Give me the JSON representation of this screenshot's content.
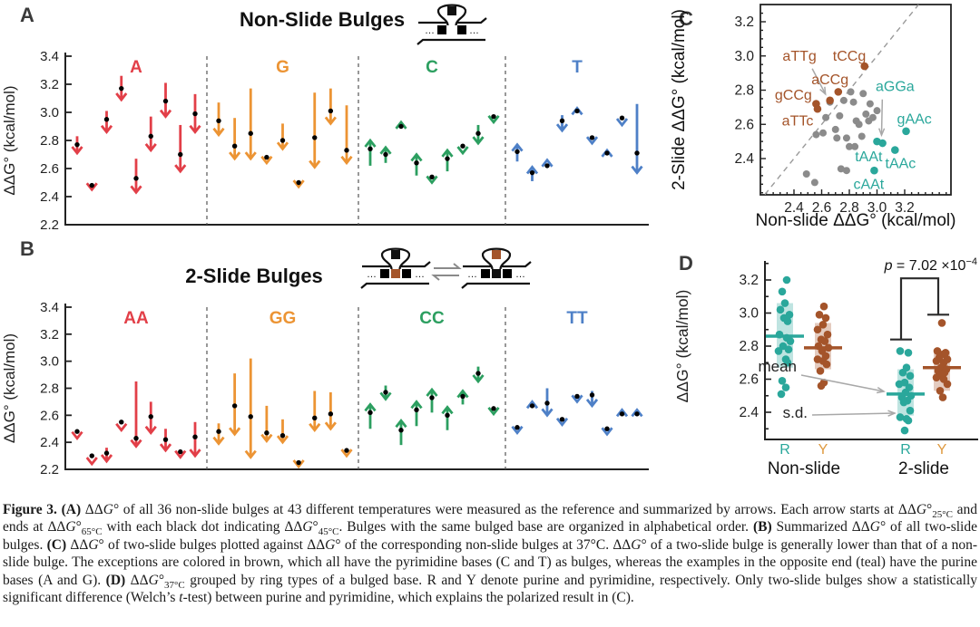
{
  "figure": {
    "panels": {
      "A": {
        "letter": "A",
        "title": "Non-Slide Bulges"
      },
      "B": {
        "letter": "B",
        "title": "2-Slide Bulges"
      },
      "C": {
        "letter": "C"
      },
      "D": {
        "letter": "D"
      }
    },
    "schematics": {
      "non_slide": {
        "loop": "black",
        "row": [
          "gray",
          "gray"
        ]
      },
      "two_slide_left": {
        "loop": "black",
        "row": [
          "gray",
          "brown",
          "gray"
        ]
      },
      "two_slide_right": {
        "loop": "brown",
        "row": [
          "gray",
          "black",
          "gray"
        ]
      }
    }
  },
  "colors": {
    "red": "#E23F48",
    "orange": "#EC9434",
    "green": "#2C9F60",
    "blue": "#4E80C7",
    "teal": "#2AA79B",
    "brown": "#A4542A",
    "orange_label": "#DF9A40",
    "gray_point": "#8B8B8B",
    "gray_square": "#A2A2A2",
    "black": "#111111",
    "axis": "#222222",
    "dash": "#555555",
    "leader": "#A8A8A8"
  },
  "chart_data": [
    {
      "id": "A",
      "type": "arrow-summary",
      "title": "Non-Slide Bulges",
      "ylabel": "ΔΔG° (kcal/mol)",
      "ylim": [
        2.2,
        3.4
      ],
      "yticks": [
        2.2,
        2.4,
        2.6,
        2.8,
        3.0,
        3.2,
        3.4
      ],
      "note": "arrows run from ΔΔG°25°C (start) through ΔΔG°45°C (dot) to ΔΔG°65°C (end)",
      "groups": [
        {
          "label": "A",
          "color": "red",
          "arrows": [
            [
              2.83,
              2.77,
              2.71
            ],
            [
              2.52,
              2.48,
              2.45
            ],
            [
              3.01,
              2.95,
              2.86
            ],
            [
              3.26,
              3.17,
              3.09
            ],
            [
              2.67,
              2.53,
              2.43
            ],
            [
              2.97,
              2.83,
              2.73
            ],
            [
              3.21,
              3.08,
              2.97
            ],
            [
              2.91,
              2.7,
              2.58
            ],
            [
              3.13,
              2.99,
              2.86
            ]
          ]
        },
        {
          "label": "G",
          "color": "orange",
          "arrows": [
            [
              3.07,
              2.94,
              2.84
            ],
            [
              2.96,
              2.76,
              2.67
            ],
            [
              3.17,
              2.85,
              2.67
            ],
            [
              2.72,
              2.68,
              2.64
            ],
            [
              2.92,
              2.8,
              2.74
            ],
            [
              2.55,
              2.5,
              2.47
            ],
            [
              3.14,
              2.82,
              2.61
            ],
            [
              3.17,
              3.01,
              2.92
            ],
            [
              3.05,
              2.73,
              2.64
            ]
          ]
        },
        {
          "label": "C",
          "color": "green",
          "arrows": [
            [
              2.62,
              2.74,
              2.8
            ],
            [
              2.64,
              2.7,
              2.75
            ],
            [
              2.86,
              2.9,
              2.93
            ],
            [
              2.55,
              2.64,
              2.7
            ],
            [
              2.58,
              2.54,
              2.5
            ],
            [
              2.58,
              2.67,
              2.73
            ],
            [
              2.8,
              2.76,
              2.71
            ],
            [
              2.91,
              2.85,
              2.78
            ],
            [
              3.01,
              2.97,
              2.93
            ]
          ]
        },
        {
          "label": "T",
          "color": "blue",
          "arrows": [
            [
              2.65,
              2.72,
              2.77
            ],
            [
              2.51,
              2.57,
              2.61
            ],
            [
              2.57,
              2.62,
              2.66
            ],
            [
              2.98,
              2.94,
              2.87
            ],
            [
              2.96,
              3.01,
              3.03
            ],
            [
              2.87,
              2.82,
              2.78
            ],
            [
              2.66,
              2.71,
              2.73
            ],
            [
              3.0,
              2.96,
              2.91
            ],
            [
              3.06,
              2.71,
              2.57
            ]
          ]
        }
      ]
    },
    {
      "id": "B",
      "type": "arrow-summary",
      "title": "2-Slide Bulges",
      "ylabel": "ΔΔG° (kcal/mol)",
      "ylim": [
        2.2,
        3.4
      ],
      "yticks": [
        2.2,
        2.4,
        2.6,
        2.8,
        3.0,
        3.2,
        3.4
      ],
      "groups": [
        {
          "label": "AA",
          "color": "red",
          "arrows": [
            [
              2.52,
              2.48,
              2.43
            ],
            [
              2.33,
              2.3,
              2.24
            ],
            [
              2.36,
              2.32,
              2.26
            ],
            [
              2.57,
              2.55,
              2.49
            ],
            [
              2.85,
              2.43,
              2.37
            ],
            [
              2.7,
              2.59,
              2.47
            ],
            [
              2.5,
              2.42,
              2.34
            ],
            [
              2.36,
              2.33,
              2.29
            ],
            [
              2.55,
              2.44,
              2.3
            ]
          ]
        },
        {
          "label": "GG",
          "color": "orange",
          "arrows": [
            [
              2.54,
              2.48,
              2.39
            ],
            [
              2.91,
              2.67,
              2.46
            ],
            [
              3.02,
              2.59,
              2.29
            ],
            [
              2.67,
              2.47,
              2.41
            ],
            [
              2.57,
              2.45,
              2.4
            ],
            [
              2.28,
              2.25,
              2.22
            ],
            [
              2.78,
              2.58,
              2.49
            ],
            [
              2.77,
              2.61,
              2.5
            ],
            [
              2.37,
              2.34,
              2.3
            ]
          ]
        },
        {
          "label": "CC",
          "color": "green",
          "arrows": [
            [
              2.5,
              2.62,
              2.68
            ],
            [
              2.82,
              2.77,
              2.72
            ],
            [
              2.38,
              2.49,
              2.56
            ],
            [
              2.52,
              2.64,
              2.7
            ],
            [
              2.62,
              2.73,
              2.79
            ],
            [
              2.49,
              2.6,
              2.66
            ],
            [
              2.68,
              2.74,
              2.78
            ],
            [
              2.96,
              2.91,
              2.85
            ],
            [
              2.69,
              2.65,
              2.61
            ]
          ]
        },
        {
          "label": "TT",
          "color": "blue",
          "arrows": [
            [
              2.55,
              2.51,
              2.47
            ],
            [
              2.62,
              2.67,
              2.7
            ],
            [
              2.8,
              2.69,
              2.6
            ],
            [
              2.61,
              2.57,
              2.53
            ],
            [
              2.78,
              2.74,
              2.7
            ],
            [
              2.78,
              2.75,
              2.67
            ],
            [
              2.54,
              2.5,
              2.46
            ],
            [
              2.57,
              2.61,
              2.64
            ],
            [
              2.57,
              2.61,
              2.64
            ]
          ]
        }
      ]
    },
    {
      "id": "C",
      "type": "scatter",
      "xlabel": "Non-slide ΔΔG° (kcal/mol)",
      "ylabel": "2-Slide ΔΔG° (kcal/mol)",
      "xlim": [
        2.16,
        3.53
      ],
      "ylim": [
        2.19,
        3.3
      ],
      "xticks": [
        2.4,
        2.6,
        2.8,
        3.0,
        3.2
      ],
      "yticks": [
        2.4,
        2.6,
        2.8,
        3.0,
        3.2
      ],
      "diagonal": true,
      "labeled_brown": [
        {
          "label": "aTTg",
          "x": 2.66,
          "y": 2.74,
          "lx": 2.44,
          "ly": 3.0,
          "anchor": "middle",
          "arrow": true
        },
        {
          "label": "tCCg",
          "x": 2.91,
          "y": 2.94,
          "lx": 2.8,
          "ly": 3.0,
          "anchor": "middle",
          "arrow": false
        },
        {
          "label": "gCCg",
          "x": 2.56,
          "y": 2.72,
          "lx": 2.53,
          "ly": 2.77,
          "anchor": "end",
          "arrow": false
        },
        {
          "label": "aTTc",
          "x": 2.57,
          "y": 2.69,
          "lx": 2.54,
          "ly": 2.62,
          "anchor": "end",
          "arrow": false
        },
        {
          "label": "aCCg",
          "x": 2.72,
          "y": 2.79,
          "lx": 2.66,
          "ly": 2.86,
          "anchor": "middle",
          "arrow": false
        }
      ],
      "labeled_teal": [
        {
          "label": "aGGa",
          "x": 3.0,
          "y": 2.5,
          "lx": 3.13,
          "ly": 2.82,
          "anchor": "middle",
          "arrow": true
        },
        {
          "label": "gAAc",
          "x": 3.21,
          "y": 2.56,
          "lx": 3.27,
          "ly": 2.63,
          "anchor": "middle",
          "arrow": false
        },
        {
          "label": "tAAt",
          "x": 3.04,
          "y": 2.49,
          "lx": 2.94,
          "ly": 2.41,
          "anchor": "middle",
          "arrow": false
        },
        {
          "label": "tAAc",
          "x": 3.13,
          "y": 2.45,
          "lx": 3.17,
          "ly": 2.37,
          "anchor": "middle",
          "arrow": false
        },
        {
          "label": "cAAt",
          "x": 2.98,
          "y": 2.33,
          "lx": 2.94,
          "ly": 2.25,
          "anchor": "middle",
          "arrow": false
        }
      ],
      "gray_points": [
        [
          2.49,
          2.31
        ],
        [
          2.55,
          2.26
        ],
        [
          2.56,
          2.54
        ],
        [
          2.61,
          2.55
        ],
        [
          2.63,
          2.64
        ],
        [
          2.66,
          2.73
        ],
        [
          2.7,
          2.57
        ],
        [
          2.71,
          2.52
        ],
        [
          2.73,
          2.65
        ],
        [
          2.74,
          2.34
        ],
        [
          2.76,
          2.74
        ],
        [
          2.78,
          2.52
        ],
        [
          2.8,
          2.47
        ],
        [
          2.81,
          2.79
        ],
        [
          2.83,
          2.73
        ],
        [
          2.85,
          2.62
        ],
        [
          2.87,
          2.6
        ],
        [
          2.89,
          2.53
        ],
        [
          2.9,
          2.78
        ],
        [
          2.92,
          2.66
        ],
        [
          2.94,
          2.62
        ],
        [
          2.95,
          2.72
        ],
        [
          2.97,
          2.64
        ],
        [
          3.0,
          2.68
        ],
        [
          2.84,
          2.47
        ],
        [
          2.78,
          2.33
        ]
      ]
    },
    {
      "id": "D",
      "type": "strip",
      "ylabel": "ΔΔG° (kcal/mol)",
      "ylim": [
        2.24,
        3.3
      ],
      "yticks": [
        2.4,
        2.6,
        2.8,
        3.0,
        3.2
      ],
      "categories": [
        "Non-slide",
        "2-slide"
      ],
      "groups": [
        {
          "category": "Non-slide",
          "ring": "R",
          "color": "teal",
          "mean": 2.86,
          "sd_range": [
            2.67,
            3.06
          ],
          "values": [
            3.2,
            3.13,
            3.06,
            3.02,
            2.99,
            2.97,
            2.95,
            2.87,
            2.85,
            2.83,
            2.8,
            2.78,
            2.77,
            2.72,
            2.7,
            2.59,
            2.55,
            2.51
          ],
          "jitter": [
            2,
            -3,
            0,
            -5,
            5,
            -1,
            3,
            -6,
            2,
            6,
            -2,
            4,
            -7,
            1,
            3,
            -3,
            1,
            -4
          ]
        },
        {
          "category": "Non-slide",
          "ring": "Y",
          "color": "brown",
          "mean": 2.79,
          "sd_range": [
            2.66,
            2.94
          ],
          "values": [
            3.04,
            2.99,
            2.97,
            2.93,
            2.9,
            2.87,
            2.84,
            2.83,
            2.8,
            2.79,
            2.77,
            2.74,
            2.72,
            2.71,
            2.69,
            2.65,
            2.58,
            2.56
          ],
          "jitter": [
            1,
            -4,
            3,
            0,
            -6,
            5,
            -2,
            2,
            -5,
            6,
            -1,
            3,
            -6,
            0,
            4,
            -3,
            1,
            -2
          ]
        },
        {
          "category": "2-slide",
          "ring": "R",
          "color": "teal",
          "mean": 2.51,
          "sd_range": [
            2.38,
            2.66
          ],
          "values": [
            2.77,
            2.76,
            2.67,
            2.64,
            2.62,
            2.58,
            2.57,
            2.55,
            2.52,
            2.5,
            2.49,
            2.47,
            2.46,
            2.41,
            2.37,
            2.36,
            2.35,
            2.29
          ],
          "jitter": [
            -6,
            3,
            1,
            -3,
            5,
            -1,
            -7,
            4,
            0,
            6,
            -4,
            2,
            -2,
            5,
            -6,
            1,
            3,
            -1
          ]
        },
        {
          "category": "2-slide",
          "ring": "Y",
          "color": "brown",
          "mean": 2.67,
          "sd_range": [
            2.53,
            2.77
          ],
          "values": [
            2.94,
            2.77,
            2.76,
            2.75,
            2.73,
            2.72,
            2.71,
            2.7,
            2.67,
            2.66,
            2.65,
            2.64,
            2.63,
            2.61,
            2.6,
            2.57,
            2.53,
            2.49
          ],
          "jitter": [
            0,
            -5,
            4,
            1,
            -3,
            6,
            -6,
            2,
            -1,
            5,
            -4,
            3,
            0,
            -6,
            2,
            6,
            -2,
            1
          ]
        }
      ],
      "significance": {
        "prefix": "p",
        "body": " = 7.02 ×10",
        "exp": "−4",
        "left_group": 2,
        "right_group": 3,
        "left_y": 2.84,
        "right_y": 2.99,
        "top_y": 3.21
      },
      "annotations": {
        "mean": "mean",
        "sd": "s.d."
      }
    }
  ],
  "caption": {
    "segments": [
      {
        "t": "Figure 3.",
        "b": true
      },
      {
        "t": " "
      },
      {
        "t": "(A)",
        "b": true
      },
      {
        "t": " ΔΔ"
      },
      {
        "t": "G",
        "i": true
      },
      {
        "t": "° of all 36 non-slide bulges at 43 different temperatures were measured as the reference and summarized by arrows. Each arrow starts at ΔΔ"
      },
      {
        "t": "G",
        "i": true
      },
      {
        "t": "°"
      },
      {
        "t": "25°C",
        "sub": true
      },
      {
        "t": " and ends at ΔΔ"
      },
      {
        "t": "G",
        "i": true
      },
      {
        "t": "°"
      },
      {
        "t": "65°C",
        "sub": true
      },
      {
        "t": " with each black dot indicating ΔΔ"
      },
      {
        "t": "G",
        "i": true
      },
      {
        "t": "°"
      },
      {
        "t": "45°C",
        "sub": true
      },
      {
        "t": ". Bulges with the same bulged base are organized in alphabetical order. "
      },
      {
        "t": "(B)",
        "b": true
      },
      {
        "t": " Summarized ΔΔ"
      },
      {
        "t": "G",
        "i": true
      },
      {
        "t": "° of all two-slide bulges. "
      },
      {
        "t": "(C)",
        "b": true
      },
      {
        "t": " ΔΔ"
      },
      {
        "t": "G",
        "i": true
      },
      {
        "t": "° of two-slide bulges plotted against ΔΔ"
      },
      {
        "t": "G",
        "i": true
      },
      {
        "t": "° of the corresponding non-slide bulges at 37°C. ΔΔ"
      },
      {
        "t": "G",
        "i": true
      },
      {
        "t": "° of a two-slide bulge is generally lower than that of a non-slide bulge. The exceptions are colored in brown, which all have the pyrimidine bases (C and T) as bulges, whereas the examples in the opposite end (teal) have the purine bases (A and G). "
      },
      {
        "t": "(D)",
        "b": true
      },
      {
        "t": " ΔΔ"
      },
      {
        "t": "G",
        "i": true
      },
      {
        "t": "°"
      },
      {
        "t": "37°C",
        "sub": true
      },
      {
        "t": " grouped by ring types of a bulged base. R and Y denote purine and pyrimidine, respectively. Only two-slide bulges show a statistically significant difference (Welch’s "
      },
      {
        "t": "t",
        "i": true
      },
      {
        "t": "-test) between purine and pyrimidine, which explains the polarized result in (C)."
      }
    ]
  }
}
